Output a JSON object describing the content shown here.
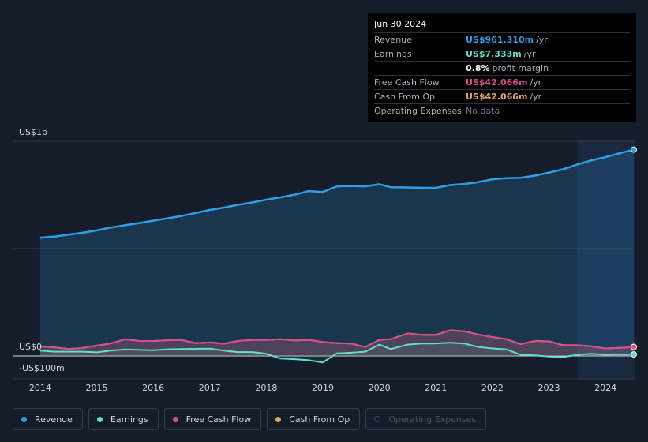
{
  "tooltip": {
    "date": "Jun 30 2024",
    "rows": [
      {
        "label": "Revenue",
        "value": "US$961.310m",
        "unit": "/yr",
        "color": "#2d9fe6"
      },
      {
        "label": "Earnings",
        "value": "US$7.333m",
        "unit": "/yr",
        "color": "#5ee0c9"
      },
      {
        "label": "",
        "value": "0.8%",
        "unit": "profit margin",
        "color": "#ffffff"
      },
      {
        "label": "Free Cash Flow",
        "value": "US$42.066m",
        "unit": "/yr",
        "color": "#d94d86"
      },
      {
        "label": "Cash From Op",
        "value": "US$42.066m",
        "unit": "/yr",
        "color": "#e8a664"
      },
      {
        "label": "Operating Expenses",
        "value": "No data",
        "unit": "",
        "color": "#6b7280"
      }
    ]
  },
  "legend": [
    {
      "label": "Revenue",
      "color": "#2d9fe6",
      "active": true
    },
    {
      "label": "Earnings",
      "color": "#5ee0c9",
      "active": true
    },
    {
      "label": "Free Cash Flow",
      "color": "#d94d86",
      "active": true
    },
    {
      "label": "Cash From Op",
      "color": "#e8a664",
      "active": true
    },
    {
      "label": "Operating Expenses",
      "color": "#3a3f6a",
      "active": false
    }
  ],
  "chart_data": {
    "type": "line",
    "unit": "US$m",
    "ylim": [
      -100,
      1000
    ],
    "y_tick_labels": [
      {
        "value": 1000,
        "label": "US$1b"
      },
      {
        "value": 0,
        "label": "US$0"
      },
      {
        "value": -100,
        "label": "-US$100m"
      }
    ],
    "x_ticks": [
      2014,
      2015,
      2016,
      2017,
      2018,
      2019,
      2020,
      2021,
      2022,
      2023,
      2024
    ],
    "x_range": [
      2013.96,
      2024.5
    ],
    "forecast_start": 2023.5,
    "series": [
      {
        "name": "Revenue",
        "color": "#2d9fe6",
        "x": [
          2014.0,
          2014.25,
          2014.5,
          2014.75,
          2015.0,
          2015.25,
          2015.5,
          2015.75,
          2016.0,
          2016.25,
          2016.5,
          2016.75,
          2017.0,
          2017.25,
          2017.5,
          2017.75,
          2018.0,
          2018.25,
          2018.5,
          2018.75,
          2019.0,
          2019.25,
          2019.5,
          2019.75,
          2020.0,
          2020.2,
          2020.5,
          2020.75,
          2021.0,
          2021.25,
          2021.5,
          2021.75,
          2022.0,
          2022.25,
          2022.5,
          2022.75,
          2023.0,
          2023.25,
          2023.5,
          2023.75,
          2024.0,
          2024.25,
          2024.5
        ],
        "y": [
          551,
          556,
          565,
          574,
          585,
          598,
          609,
          619,
          630,
          641,
          652,
          666,
          680,
          691,
          704,
          715,
          728,
          739,
          751,
          768,
          764,
          790,
          792,
          790,
          800,
          786,
          785,
          783,
          783,
          796,
          801,
          810,
          823,
          828,
          830,
          840,
          854,
          870,
          892,
          911,
          926,
          944,
          961
        ]
      },
      {
        "name": "Earnings",
        "color": "#5ee0c9",
        "x": [
          2014.0,
          2014.25,
          2014.5,
          2014.75,
          2015.0,
          2015.25,
          2015.5,
          2015.75,
          2016.0,
          2016.25,
          2016.5,
          2016.75,
          2017.0,
          2017.25,
          2017.5,
          2017.75,
          2018.0,
          2018.25,
          2018.5,
          2018.75,
          2019.0,
          2019.25,
          2019.5,
          2019.75,
          2020.0,
          2020.2,
          2020.5,
          2020.75,
          2021.0,
          2021.25,
          2021.5,
          2021.75,
          2022.0,
          2022.25,
          2022.5,
          2022.75,
          2023.0,
          2023.25,
          2023.5,
          2023.75,
          2024.0,
          2024.25,
          2024.5
        ],
        "y": [
          25,
          20,
          20,
          20,
          17,
          25,
          30,
          28,
          27,
          31,
          32,
          33,
          34,
          25,
          18,
          18,
          10,
          -12,
          -15,
          -20,
          -30,
          12,
          15,
          20,
          53,
          32,
          53,
          58,
          58,
          62,
          58,
          42,
          35,
          30,
          5,
          3,
          -3,
          -5,
          5,
          10,
          6,
          7,
          7
        ]
      },
      {
        "name": "Free Cash Flow",
        "color": "#d94d86",
        "x": [
          2014.0,
          2014.25,
          2014.5,
          2014.75,
          2015.0,
          2015.25,
          2015.5,
          2015.75,
          2016.0,
          2016.25,
          2016.5,
          2016.75,
          2017.0,
          2017.25,
          2017.5,
          2017.75,
          2018.0,
          2018.25,
          2018.5,
          2018.75,
          2019.0,
          2019.25,
          2019.5,
          2019.75,
          2020.0,
          2020.2,
          2020.5,
          2020.75,
          2021.0,
          2021.25,
          2021.5,
          2021.75,
          2022.0,
          2022.25,
          2022.5,
          2022.75,
          2023.0,
          2023.25,
          2023.5,
          2023.75,
          2024.0,
          2024.25,
          2024.5
        ],
        "y": [
          45,
          40,
          32,
          37,
          48,
          58,
          78,
          70,
          70,
          73,
          74,
          60,
          63,
          57,
          70,
          75,
          75,
          78,
          72,
          75,
          65,
          60,
          58,
          42,
          75,
          78,
          105,
          98,
          98,
          120,
          115,
          100,
          88,
          78,
          55,
          70,
          68,
          50,
          50,
          45,
          35,
          38,
          42
        ]
      },
      {
        "name": "Cash From Op",
        "color": "#e8a664",
        "x": [
          2014.0,
          2014.25,
          2014.5,
          2014.75,
          2015.0,
          2015.25,
          2015.5,
          2015.75,
          2016.0,
          2016.25,
          2016.5,
          2016.75,
          2017.0,
          2017.25,
          2017.5,
          2017.75,
          2018.0,
          2018.25,
          2018.5,
          2018.75,
          2019.0,
          2019.25,
          2019.5,
          2019.75,
          2020.0,
          2020.2,
          2020.5,
          2020.75,
          2021.0,
          2021.25,
          2021.5,
          2021.75,
          2022.0,
          2022.25,
          2022.5,
          2022.75,
          2023.0,
          2023.25,
          2023.5,
          2023.75,
          2024.0,
          2024.25,
          2024.5
        ],
        "y": [
          45,
          40,
          32,
          37,
          48,
          58,
          78,
          70,
          70,
          73,
          74,
          60,
          63,
          57,
          70,
          75,
          75,
          78,
          72,
          75,
          65,
          60,
          58,
          42,
          75,
          78,
          105,
          98,
          98,
          120,
          115,
          100,
          88,
          78,
          55,
          70,
          68,
          50,
          50,
          45,
          35,
          38,
          42
        ]
      }
    ]
  }
}
